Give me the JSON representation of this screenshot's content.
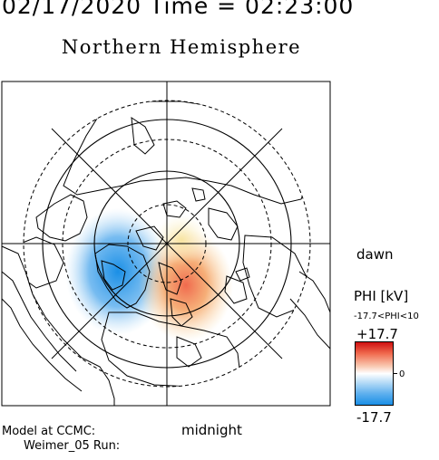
{
  "header": {
    "date_time": "02/17/2020 Time = 02:23:00",
    "hemisphere": "Northern Hemisphere"
  },
  "map": {
    "projection": "polar-stereographic",
    "pole": "north",
    "dashed_circles": 3,
    "solid_circles": 2,
    "meridians": 4,
    "land_color": "#ffffff",
    "coast_color": "#000000",
    "potential_features": [
      {
        "sign": "negative",
        "color": "#1a8fe6",
        "location": "dawn-midnight sector"
      },
      {
        "sign": "positive",
        "color": "#f06a4e",
        "location": "midnight-dusk sector"
      }
    ]
  },
  "labels": {
    "dawn": "dawn",
    "midnight": "midnight",
    "model": "Model at CCMC:",
    "run": "Weimer_05 Run:"
  },
  "colorbar": {
    "title": "PHI [kV]",
    "range_text": "-17.7<PHI<10",
    "max_label": "+17.7",
    "zero_label": "0",
    "min_label": "-17.7",
    "max_value": 17.7,
    "min_value": -17.7,
    "high_color": "#d01010",
    "low_color": "#1a8fe6"
  }
}
